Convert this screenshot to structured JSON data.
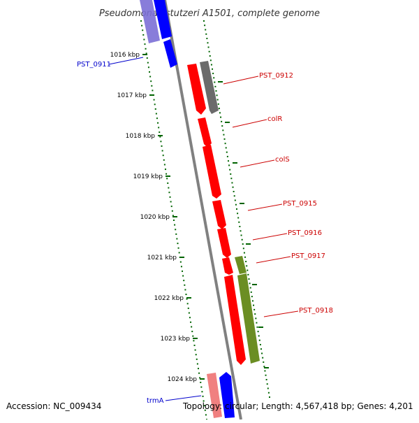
{
  "title": "Pseudomonas stutzeri A1501, complete genome",
  "footer": {
    "accession": "Accession: NC_009434",
    "topology": "Topology: circular; Length: 4,567,418 bp; Genes: 4,201"
  },
  "scale_ticks": [
    {
      "label": "1016 kbp",
      "kbp": 1016
    },
    {
      "label": "1017 kbp",
      "kbp": 1017
    },
    {
      "label": "1018 kbp",
      "kbp": 1018
    },
    {
      "label": "1019 kbp",
      "kbp": 1019
    },
    {
      "label": "1020 kbp",
      "kbp": 1020
    },
    {
      "label": "1021 kbp",
      "kbp": 1021
    },
    {
      "label": "1022 kbp",
      "kbp": 1022
    },
    {
      "label": "1023 kbp",
      "kbp": 1023
    },
    {
      "label": "1024 kbp",
      "kbp": 1024
    }
  ],
  "colors": {
    "backbone": "#808080",
    "forward_gene": "#ff0000",
    "forward_faded": "#f08080",
    "reverse_gene": "#0000ff",
    "reverse_faded": "#7b6fd6",
    "other_gene": "#6b6b6b",
    "olive_gene": "#6b8e23",
    "tick": "#006400",
    "label_forward": "#cc0000",
    "label_reverse": "#0000cc"
  },
  "genes": [
    {
      "label": "PST_0911",
      "strand": "reverse",
      "color": "#0000ff"
    },
    {
      "label": "PST_0912",
      "strand": "forward",
      "color": "#6b6b6b"
    },
    {
      "label": "colR",
      "strand": "forward",
      "color": "#ff0000"
    },
    {
      "label": "colS",
      "strand": "forward",
      "color": "#ff0000"
    },
    {
      "label": "PST_0915",
      "strand": "forward",
      "color": "#ff0000"
    },
    {
      "label": "PST_0916",
      "strand": "forward",
      "color": "#ff0000"
    },
    {
      "label": "PST_0917",
      "strand": "forward",
      "color": "#6b8e23"
    },
    {
      "label": "PST_0918",
      "strand": "forward",
      "color": "#6b8e23"
    },
    {
      "label": "trmA",
      "strand": "reverse",
      "color": "#0000ff"
    }
  ]
}
